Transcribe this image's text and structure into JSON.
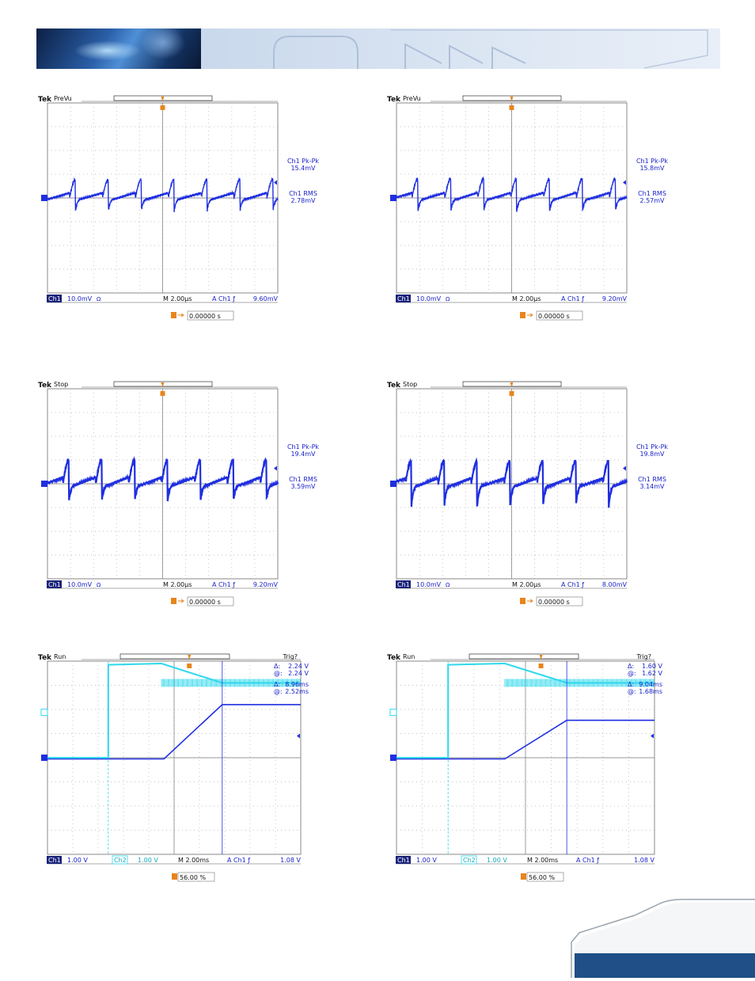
{
  "colors": {
    "ch1": "#1f2fe0",
    "ch2": "#2fd8ec",
    "label": "#1a22c8",
    "marker": "#e8851c",
    "grid": "#8a8a8a",
    "brand": "#1f4f86"
  },
  "scopes": [
    {
      "brand": "Tek",
      "state": "PreVu",
      "trig_status": "",
      "meas": [
        {
          "label": "Ch1 Pk-Pk",
          "value": "15.4mV"
        },
        {
          "label": "Ch1 RMS",
          "value": "2.78mV"
        }
      ],
      "status": {
        "ch_a": "Ch1",
        "ch_a_scale": "10.0mV",
        "ch_a_coupling": "Ω",
        "ch_b": "",
        "ch_b_scale": "",
        "timebase": "M 2.00µs",
        "trig_src": "A  Ch1  ƒ",
        "trig_level": "9.60mV"
      },
      "bottom": {
        "icon": "T→▾",
        "value": "0.00000 s"
      }
    },
    {
      "brand": "Tek",
      "state": "PreVu",
      "trig_status": "",
      "meas": [
        {
          "label": "Ch1 Pk-Pk",
          "value": "15.8mV"
        },
        {
          "label": "Ch1 RMS",
          "value": "2.57mV"
        }
      ],
      "status": {
        "ch_a": "Ch1",
        "ch_a_scale": "10.0mV",
        "ch_a_coupling": "Ω",
        "ch_b": "",
        "ch_b_scale": "",
        "timebase": "M 2.00µs",
        "trig_src": "A  Ch1  ƒ",
        "trig_level": "9.20mV"
      },
      "bottom": {
        "icon": "T→▾",
        "value": "0.00000 s"
      }
    },
    {
      "brand": "Tek",
      "state": "Stop",
      "trig_status": "",
      "meas": [
        {
          "label": "Ch1 Pk-Pk",
          "value": "19.4mV"
        },
        {
          "label": "Ch1 RMS",
          "value": "3.59mV"
        }
      ],
      "status": {
        "ch_a": "Ch1",
        "ch_a_scale": "10.0mV",
        "ch_a_coupling": "Ω",
        "ch_b": "",
        "ch_b_scale": "",
        "timebase": "M 2.00µs",
        "trig_src": "A  Ch1  ƒ",
        "trig_level": "9.20mV"
      },
      "bottom": {
        "icon": "T→▾",
        "value": "0.00000 s"
      }
    },
    {
      "brand": "Tek",
      "state": "Stop",
      "trig_status": "",
      "meas": [
        {
          "label": "Ch1 Pk-Pk",
          "value": "19.8mV"
        },
        {
          "label": "Ch1 RMS",
          "value": "3.14mV"
        }
      ],
      "status": {
        "ch_a": "Ch1",
        "ch_a_scale": "10.0mV",
        "ch_a_coupling": "Ω",
        "ch_b": "",
        "ch_b_scale": "",
        "timebase": "M 2.00µs",
        "trig_src": "A  Ch1  ƒ",
        "trig_level": "8.00mV"
      },
      "bottom": {
        "icon": "T→▾",
        "value": "0.00000 s"
      }
    },
    {
      "brand": "Tek",
      "state": "Run",
      "trig_status": "Trig?",
      "meas": [
        {
          "label": "Δ:",
          "value": "2.24 V"
        },
        {
          "label": "@:",
          "value": "2.24 V"
        },
        {
          "label": "Δ:",
          "value": "8.96ms"
        },
        {
          "label": "@:",
          "value": "2.52ms"
        }
      ],
      "status": {
        "ch_a": "Ch1",
        "ch_a_scale": "1.00 V",
        "ch_a_coupling": "",
        "ch_b": "Ch2",
        "ch_b_scale": "1.00 V",
        "timebase": "M 2.00ms",
        "trig_src": "A  Ch1  ƒ",
        "trig_level": "1.08 V"
      },
      "bottom": {
        "icon": "T",
        "value": "56.00 %"
      }
    },
    {
      "brand": "Tek",
      "state": "Run",
      "trig_status": "Trig?",
      "meas": [
        {
          "label": "Δ:",
          "value": "1.60 V"
        },
        {
          "label": "@:",
          "value": "1.62 V"
        },
        {
          "label": "Δ:",
          "value": "9.04ms"
        },
        {
          "label": "@:",
          "value": "1.68ms"
        }
      ],
      "status": {
        "ch_a": "Ch1",
        "ch_a_scale": "1.00 V",
        "ch_a_coupling": "",
        "ch_b": "Ch2",
        "ch_b_scale": "1.00 V",
        "timebase": "M 2.00ms",
        "trig_src": "A  Ch1  ƒ",
        "trig_level": "1.08 V"
      },
      "bottom": {
        "icon": "T",
        "value": "56.00 %"
      }
    }
  ],
  "chart_data": [
    {
      "type": "line",
      "x_unit": "div (2.00µs/div)",
      "y_unit": "div (10.0mV/div)",
      "xlim": [
        0,
        10
      ],
      "ylim": [
        -4,
        4
      ],
      "series": [
        {
          "name": "Ch1",
          "waveform": "ripple",
          "cycles": 7,
          "phase": 0.15,
          "peak_div": 0.77,
          "trough_div": -0.55
        }
      ]
    },
    {
      "type": "line",
      "x_unit": "div (2.00µs/div)",
      "y_unit": "div (10.0mV/div)",
      "xlim": [
        0,
        10
      ],
      "ylim": [
        -4,
        4
      ],
      "series": [
        {
          "name": "Ch1",
          "waveform": "ripple",
          "cycles": 7,
          "phase": 0.35,
          "peak_div": 0.8,
          "trough_div": -0.6
        }
      ]
    },
    {
      "type": "line",
      "x_unit": "div (2.00µs/div)",
      "y_unit": "div (10.0mV/div)",
      "xlim": [
        0,
        10
      ],
      "ylim": [
        -4,
        4
      ],
      "series": [
        {
          "name": "Ch1",
          "waveform": "ripple",
          "cycles": 7,
          "phase": 0.35,
          "peak_div": 1.0,
          "trough_div": -0.75
        }
      ]
    },
    {
      "type": "line",
      "x_unit": "div (2.00µs/div)",
      "y_unit": "div (10.0mV/div)",
      "xlim": [
        0,
        10
      ],
      "ylim": [
        -4,
        4
      ],
      "series": [
        {
          "name": "Ch1",
          "waveform": "ripple",
          "cycles": 7,
          "phase": 0.55,
          "peak_div": 0.95,
          "trough_div": -1.0
        }
      ]
    },
    {
      "type": "line",
      "x_unit": "div (2.00ms/div)",
      "y_unit": "V",
      "xlim": [
        0,
        10
      ],
      "ylim": [
        -4,
        4
      ],
      "series": [
        {
          "name": "Ch1",
          "x": [
            0,
            4.6,
            6.9,
            10
          ],
          "y": [
            -0.05,
            -0.05,
            2.2,
            2.2
          ]
        },
        {
          "name": "Ch2",
          "x": [
            0,
            2.4,
            2.4,
            4.5,
            6.9,
            10
          ],
          "y": [
            0,
            0,
            3.85,
            3.9,
            3.1,
            3.1
          ]
        }
      ],
      "cursors_x_div": [
        2.4,
        6.9
      ]
    },
    {
      "type": "line",
      "x_unit": "div (2.00ms/div)",
      "y_unit": "V",
      "xlim": [
        0,
        10
      ],
      "ylim": [
        -4,
        4
      ],
      "series": [
        {
          "name": "Ch1",
          "x": [
            0,
            4.2,
            6.6,
            10
          ],
          "y": [
            -0.05,
            -0.05,
            1.55,
            1.55
          ]
        },
        {
          "name": "Ch2",
          "x": [
            0,
            2.0,
            2.0,
            4.2,
            6.6,
            10
          ],
          "y": [
            0,
            0,
            3.85,
            3.9,
            3.1,
            3.1
          ]
        }
      ],
      "cursors_x_div": [
        2.0,
        6.6
      ]
    }
  ]
}
